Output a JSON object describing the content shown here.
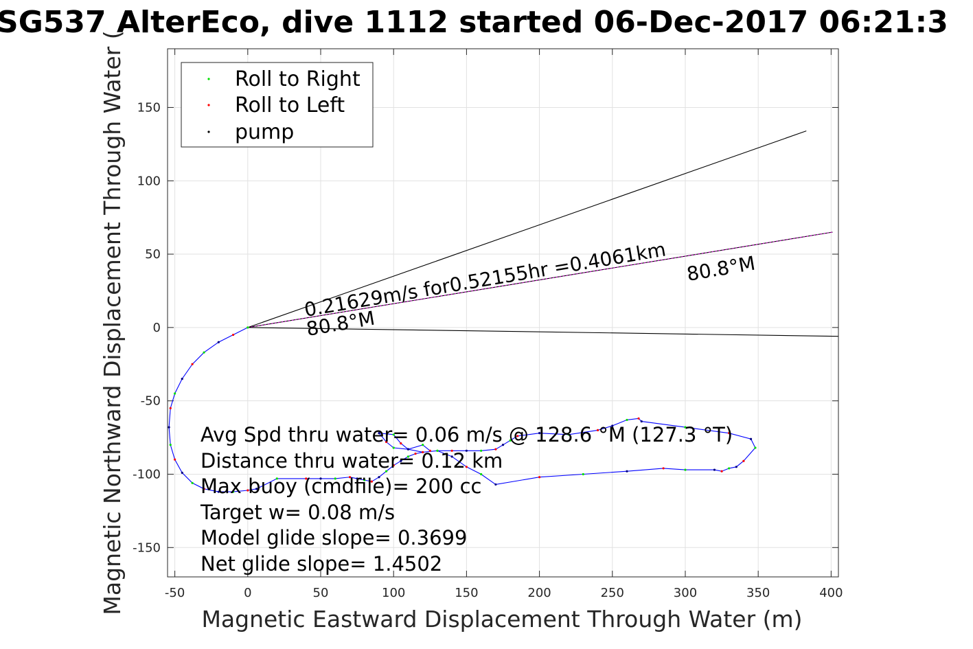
{
  "chart_data": {
    "type": "line",
    "title": "SG537 AlterEco, dive 1112 started 06-Dec-2017 06:21:3",
    "xlabel": "Magnetic Eastward Displacement Through Water (m)",
    "ylabel": "Magnetic Northward Displacement Through Water (",
    "xlim": [
      -55,
      405
    ],
    "ylim": [
      -170,
      190
    ],
    "xticks": [
      -50,
      0,
      50,
      100,
      150,
      200,
      250,
      300,
      350,
      400
    ],
    "yticks": [
      -150,
      -100,
      -50,
      0,
      50,
      100,
      150
    ],
    "grid": true,
    "legend": {
      "placement": "top-left",
      "entries": [
        {
          "label": "Roll to Right",
          "color": "#00e000"
        },
        {
          "label": "Roll to Left",
          "color": "#ff0000"
        },
        {
          "label": "pump",
          "color": "#000000"
        }
      ]
    },
    "track": {
      "color": "#0000ff",
      "x": [
        0,
        -10,
        -20,
        -30,
        -38,
        -45,
        -50,
        -53,
        -54,
        -53,
        -50,
        -45,
        -38,
        -30,
        -20,
        -10,
        0,
        6,
        20,
        40,
        50,
        60,
        70,
        75,
        80,
        85,
        90,
        95,
        100,
        105,
        110,
        115,
        120,
        130,
        140,
        150,
        160,
        170,
        175,
        180,
        185,
        200,
        220,
        240,
        250,
        260,
        268,
        270,
        300,
        330,
        345,
        348,
        340,
        335,
        330,
        325,
        320,
        300,
        285,
        260,
        230,
        200,
        170,
        160,
        150,
        140,
        130,
        120,
        110,
        100,
        95,
        90,
        100,
        105,
        110,
        120,
        125
      ],
      "y": [
        0,
        -5,
        -10,
        -17,
        -25,
        -35,
        -45,
        -55,
        -68,
        -80,
        -90,
        -99,
        -106,
        -110,
        -112,
        -112,
        -111,
        -110,
        -103,
        -103,
        -103,
        -103,
        -102,
        -103,
        -104,
        -105,
        -102,
        -98,
        -94,
        -91,
        -88,
        -86,
        -85,
        -84,
        -84,
        -84,
        -84,
        -83,
        -80,
        -77,
        -74,
        -72,
        -73,
        -70,
        -67,
        -63,
        -62,
        -64,
        -68,
        -72,
        -76,
        -82,
        -91,
        -95,
        -96,
        -98,
        -97,
        -97,
        -96,
        -98,
        -100,
        -102,
        -107,
        -100,
        -95,
        -88,
        -84,
        -85,
        -83,
        -82,
        -78,
        -72,
        -73,
        -79,
        -83,
        -80,
        -84
      ]
    },
    "heading_lines": [
      {
        "name": "heading-upper",
        "x": [
          0,
          383
        ],
        "y": [
          0,
          134
        ]
      },
      {
        "name": "heading-mid",
        "x": [
          0,
          401
        ],
        "y": [
          0,
          65
        ]
      },
      {
        "name": "heading-lower",
        "x": [
          0,
          405
        ],
        "y": [
          0,
          -6
        ]
      }
    ],
    "stats": [
      "Avg Spd thru water=  0.06 m/s @ 128.6 °M (127.3 °T)",
      "Distance thru water=  0.12 km",
      "Max buoy (cmdfile)= 200 cc",
      "Target w= 0.08 m/s",
      "Model glide slope= 0.3699",
      "Net glide slope= 1.4502"
    ],
    "annotations": {
      "speed": "0.21629m/s for0.52155hr =0.4061km",
      "heading_near": "80.8°M",
      "heading_far": "80.8°M"
    }
  }
}
